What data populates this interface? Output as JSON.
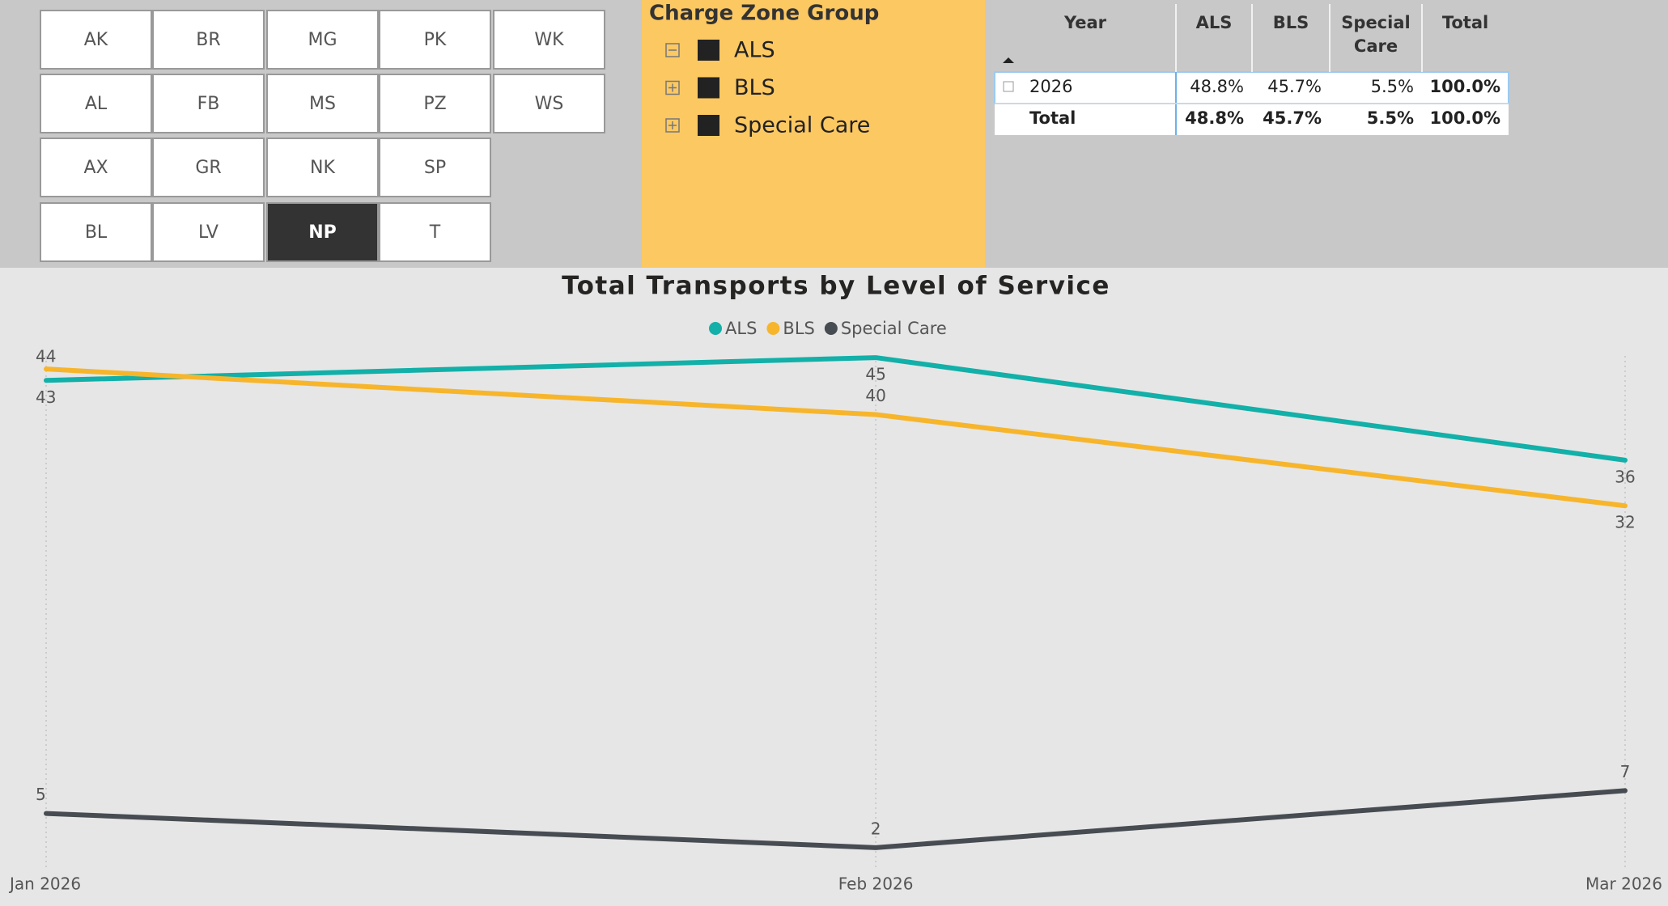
{
  "slicer": {
    "rows": [
      [
        "AK",
        "BR",
        "MG",
        "PK",
        "WK"
      ],
      [
        "AL",
        "FB",
        "MS",
        "PZ",
        "WS"
      ],
      [
        "AX",
        "GR",
        "NK",
        "SP"
      ],
      [
        "BL",
        "LV",
        "NP",
        "T"
      ]
    ],
    "selected": "NP"
  },
  "legend_panel": {
    "title": "Charge Zone Group",
    "items": [
      "ALS",
      "BLS",
      "Special Care"
    ]
  },
  "table": {
    "header": [
      "Year",
      "ALS",
      "BLS",
      "Special Care",
      "Total"
    ],
    "rows": [
      [
        "2026",
        "48.8%",
        "45.7%",
        "5.5%",
        "100.0%"
      ],
      [
        "Total",
        "48.8%",
        "45.7%",
        "5.5%",
        "100.0%"
      ]
    ]
  },
  "chart_data": {
    "type": "line",
    "title": "Total Transports by Level of Service",
    "x": [
      "Jan 2026",
      "Feb 2026",
      "Mar 2026"
    ],
    "series": [
      {
        "name": "ALS",
        "color": "#12b0a8",
        "values": [
          43,
          45,
          36
        ]
      },
      {
        "name": "BLS",
        "color": "#f7b52c",
        "values": [
          44,
          40,
          32
        ]
      },
      {
        "name": "Special Care",
        "color": "#474c52",
        "values": [
          5,
          2,
          7
        ]
      }
    ],
    "ylim": [
      0,
      46
    ],
    "grid": true
  }
}
